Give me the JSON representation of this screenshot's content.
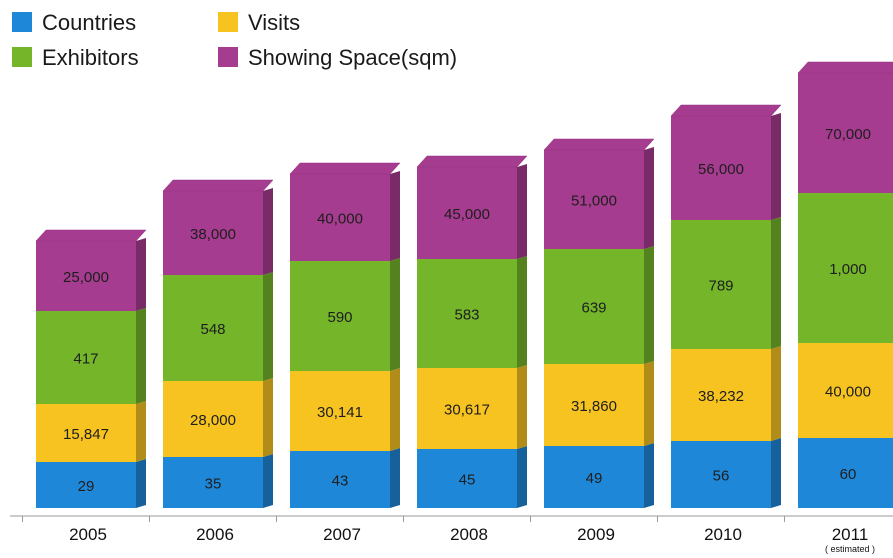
{
  "chart_data": {
    "type": "bar",
    "stacked": true,
    "title": "",
    "xlabel": "",
    "ylabel": "",
    "categories": [
      "2005",
      "2006",
      "2007",
      "2008",
      "2009",
      "2010",
      "2011"
    ],
    "category_notes": [
      "",
      "",
      "",
      "",
      "",
      "",
      "( estimated )"
    ],
    "legend": {
      "position": "top-left"
    },
    "grid": false,
    "series": [
      {
        "name": "Countries",
        "color": "#1f87d8",
        "values": [
          29,
          35,
          43,
          45,
          49,
          56,
          60
        ],
        "labels": [
          "29",
          "35",
          "43",
          "45",
          "49",
          "56",
          "60"
        ]
      },
      {
        "name": "Visits",
        "color": "#f6c321",
        "values": [
          15847,
          28000,
          30141,
          30617,
          31860,
          38232,
          40000
        ],
        "labels": [
          "15,847",
          "28,000",
          "30,141",
          "30,617",
          "31,860",
          "38,232",
          "40,000"
        ]
      },
      {
        "name": "Exhibitors",
        "color": "#74b52a",
        "values": [
          417,
          548,
          590,
          583,
          639,
          789,
          1000
        ],
        "labels": [
          "417",
          "548",
          "590",
          "583",
          "639",
          "789",
          "1,000"
        ]
      },
      {
        "name": "Showing Space(sqm)",
        "color": "#a63c8f",
        "values": [
          25000,
          38000,
          40000,
          45000,
          51000,
          56000,
          70000
        ],
        "labels": [
          "25,000",
          "38,000",
          "40,000",
          "45,000",
          "51,000",
          "56,000",
          "70,000"
        ]
      }
    ]
  }
}
